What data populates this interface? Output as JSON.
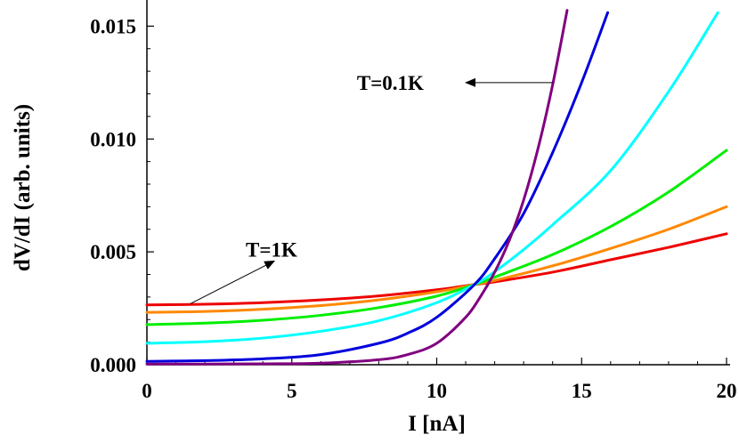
{
  "chart_data": {
    "type": "line",
    "xlabel": "I [nA]",
    "ylabel": "dV/dI (arb. units)",
    "xlim": [
      0,
      20
    ],
    "ylim": [
      0,
      0.016
    ],
    "xticks": [
      0,
      5,
      10,
      15,
      20
    ],
    "yticks": [
      0.0,
      0.005,
      0.01,
      0.015
    ],
    "ytick_labels": [
      "0.000",
      "0.005",
      "0.010",
      "0.015"
    ],
    "grid": false,
    "legend": "none",
    "series": [
      {
        "color": "#ee0000",
        "x": [
          0,
          2,
          4,
          6,
          8,
          10,
          11.3,
          12,
          14,
          16,
          18,
          20
        ],
        "y": [
          0.00265,
          0.00268,
          0.00275,
          0.00287,
          0.00305,
          0.00332,
          0.00355,
          0.00367,
          0.0041,
          0.00465,
          0.0052,
          0.0058
        ]
      },
      {
        "color": "#ff8800",
        "x": [
          0,
          2,
          4,
          6,
          8,
          10,
          11.3,
          12,
          14,
          16,
          18,
          20
        ],
        "y": [
          0.00232,
          0.00236,
          0.00246,
          0.00262,
          0.00287,
          0.00323,
          0.00355,
          0.00373,
          0.00438,
          0.00515,
          0.006,
          0.007
        ]
      },
      {
        "color": "#00ee00",
        "x": [
          0,
          2,
          4,
          6,
          8,
          10,
          11.3,
          12,
          14,
          16,
          18,
          20
        ],
        "y": [
          0.00178,
          0.00184,
          0.00197,
          0.00219,
          0.00253,
          0.00304,
          0.00355,
          0.00388,
          0.00488,
          0.00612,
          0.00765,
          0.0095
        ]
      },
      {
        "color": "#00ffff",
        "x": [
          0,
          2,
          4,
          6,
          8,
          10,
          11.3,
          12,
          13,
          14,
          16,
          18,
          19.7
        ],
        "y": [
          0.00095,
          0.00102,
          0.00118,
          0.00148,
          0.00195,
          0.00275,
          0.00355,
          0.00412,
          0.0051,
          0.0062,
          0.0086,
          0.0121,
          0.0156
        ]
      },
      {
        "color": "#0000dd",
        "x": [
          0,
          2,
          4,
          6,
          8,
          9,
          10,
          11.3,
          12,
          13,
          14,
          15,
          15.9
        ],
        "y": [
          0.00015,
          0.00018,
          0.00026,
          0.00045,
          0.00095,
          0.0014,
          0.0021,
          0.00355,
          0.0047,
          0.0067,
          0.0094,
          0.0125,
          0.0156
        ]
      },
      {
        "color": "#800080",
        "x": [
          0,
          2,
          4,
          6,
          8,
          9,
          10,
          11,
          11.5,
          12,
          12.5,
          13,
          13.5,
          14,
          14.5
        ],
        "y": [
          3e-05,
          3e-05,
          4e-05,
          7e-05,
          0.00022,
          0.00045,
          0.00095,
          0.0021,
          0.003,
          0.0041,
          0.0055,
          0.0073,
          0.0096,
          0.0124,
          0.0157
        ]
      }
    ],
    "annotations": [
      {
        "text": "T=0.1K",
        "x": 8.4,
        "y": 0.0125,
        "arrow_tail": [
          14.0,
          0.0125
        ],
        "arrow_head": [
          11.0,
          0.0125
        ]
      },
      {
        "text": "T=1K",
        "x": 4.3,
        "y": 0.0051,
        "arrow_tail": [
          1.5,
          0.0027
        ],
        "arrow_head": [
          4.4,
          0.0046
        ]
      }
    ]
  }
}
